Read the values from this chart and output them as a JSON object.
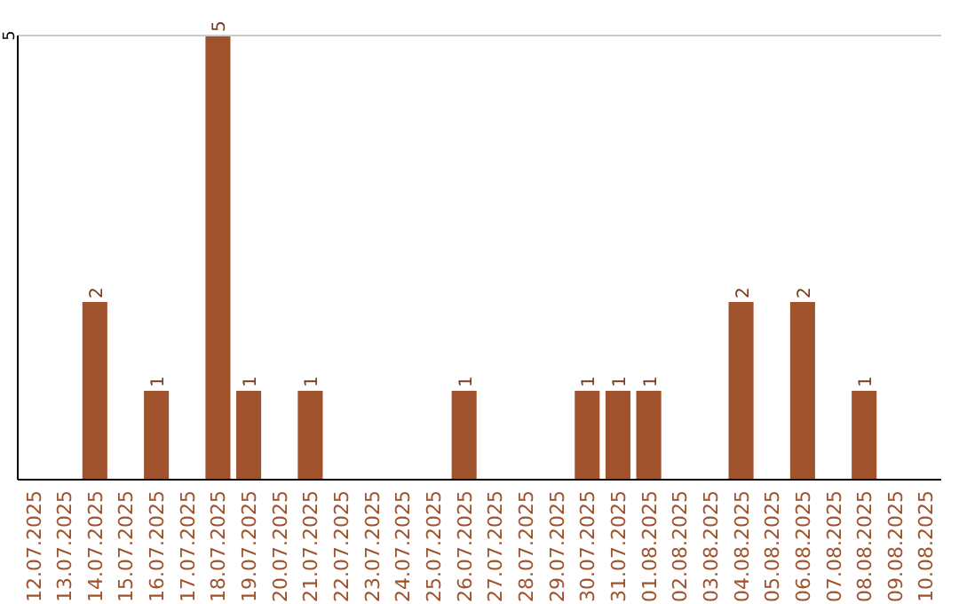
{
  "chart_data": {
    "type": "bar",
    "categories": [
      "12.07.2025",
      "13.07.2025",
      "14.07.2025",
      "15.07.2025",
      "16.07.2025",
      "17.07.2025",
      "18.07.2025",
      "19.07.2025",
      "20.07.2025",
      "21.07.2025",
      "22.07.2025",
      "23.07.2025",
      "24.07.2025",
      "25.07.2025",
      "26.07.2025",
      "27.07.2025",
      "28.07.2025",
      "29.07.2025",
      "30.07.2025",
      "31.07.2025",
      "01.08.2025",
      "02.08.2025",
      "03.08.2025",
      "04.08.2025",
      "05.08.2025",
      "06.08.2025",
      "07.08.2025",
      "08.08.2025",
      "09.08.2025",
      "10.08.2025"
    ],
    "values": [
      0,
      0,
      2,
      0,
      1,
      0,
      5,
      1,
      0,
      1,
      0,
      0,
      0,
      0,
      1,
      0,
      0,
      0,
      1,
      1,
      1,
      0,
      0,
      2,
      0,
      2,
      0,
      1,
      0,
      0
    ],
    "value_labels": [
      null,
      null,
      "2",
      null,
      "1",
      null,
      "5",
      "1",
      null,
      "1",
      null,
      null,
      null,
      null,
      "1",
      null,
      null,
      null,
      "1",
      "1",
      "1",
      null,
      null,
      "2",
      null,
      "2",
      null,
      "1",
      null,
      null
    ],
    "color": "#a0522d",
    "ylim": [
      0,
      5
    ],
    "yticks": [
      5
    ]
  }
}
